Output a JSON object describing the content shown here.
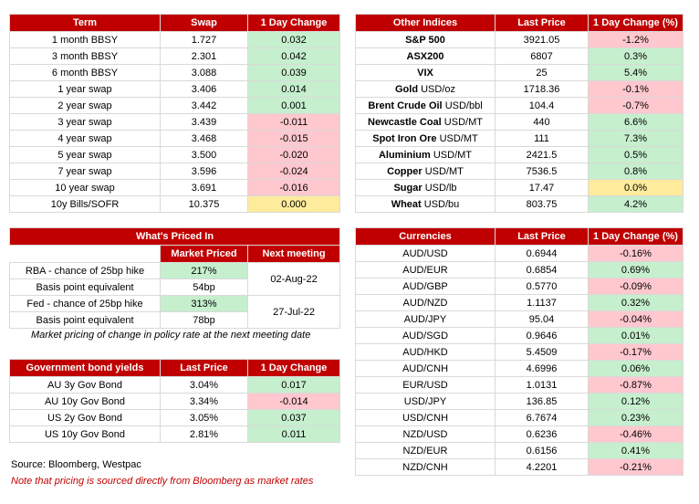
{
  "swaps": {
    "headers": [
      "Term",
      "Swap",
      "1 Day Change"
    ],
    "rows": [
      {
        "term": "1 month BBSY",
        "value": "1.727",
        "change": "0.032",
        "tone": "pos"
      },
      {
        "term": "3 month BBSY",
        "value": "2.301",
        "change": "0.042",
        "tone": "pos"
      },
      {
        "term": "6 month BBSY",
        "value": "3.088",
        "change": "0.039",
        "tone": "pos"
      },
      {
        "term": "1 year swap",
        "value": "3.406",
        "change": "0.014",
        "tone": "pos"
      },
      {
        "term": "2 year swap",
        "value": "3.442",
        "change": "0.001",
        "tone": "pos"
      },
      {
        "term": "3 year swap",
        "value": "3.439",
        "change": "-0.011",
        "tone": "neg"
      },
      {
        "term": "4 year swap",
        "value": "3.468",
        "change": "-0.015",
        "tone": "neg"
      },
      {
        "term": "5 year swap",
        "value": "3.500",
        "change": "-0.020",
        "tone": "neg"
      },
      {
        "term": "7 year swap",
        "value": "3.596",
        "change": "-0.024",
        "tone": "neg"
      },
      {
        "term": "10 year swap",
        "value": "3.691",
        "change": "-0.016",
        "tone": "neg"
      },
      {
        "term": "10y Bills/SOFR",
        "value": "10.375",
        "change": "0.000",
        "tone": "zero"
      }
    ]
  },
  "indices": {
    "headers": [
      "Other Indices",
      "Last Price",
      "1 Day Change (%)"
    ],
    "rows": [
      {
        "name": "S&P 500",
        "unit": "",
        "price": "3921.05",
        "change": "-1.2%",
        "tone": "neg"
      },
      {
        "name": "ASX200",
        "unit": "",
        "price": "6807",
        "change": "0.3%",
        "tone": "pos"
      },
      {
        "name": "VIX",
        "unit": "",
        "price": "25",
        "change": "5.4%",
        "tone": "pos"
      },
      {
        "name": "Gold",
        "unit": "USD/oz",
        "price": "1718.36",
        "change": "-0.1%",
        "tone": "neg"
      },
      {
        "name": "Brent Crude Oil",
        "unit": "USD/bbl",
        "price": "104.4",
        "change": "-0.7%",
        "tone": "neg"
      },
      {
        "name": "Newcastle Coal",
        "unit": "USD/MT",
        "price": "440",
        "change": "6.6%",
        "tone": "pos"
      },
      {
        "name": "Spot Iron Ore",
        "unit": "USD/MT",
        "price": "111",
        "change": "7.3%",
        "tone": "pos"
      },
      {
        "name": "Aluminium",
        "unit": "USD/MT",
        "price": "2421.5",
        "change": "0.5%",
        "tone": "pos"
      },
      {
        "name": "Copper",
        "unit": "USD/MT",
        "price": "7536.5",
        "change": "0.8%",
        "tone": "pos"
      },
      {
        "name": "Sugar",
        "unit": "USD/lb",
        "price": "17.47",
        "change": "0.0%",
        "tone": "zero"
      },
      {
        "name": "Wheat",
        "unit": "USD/bu",
        "price": "803.75",
        "change": "4.2%",
        "tone": "pos"
      }
    ]
  },
  "priced": {
    "title": "What's Priced In",
    "col1": "Market Priced",
    "col2": "Next meeting",
    "rows": [
      {
        "label": "RBA - chance of 25bp hike",
        "value": "217%",
        "tone": "pos"
      },
      {
        "label": "Basis point equivalent",
        "value": "54bp",
        "tone": ""
      },
      {
        "label": "Fed - chance of 25bp hike",
        "value": "313%",
        "tone": "pos"
      },
      {
        "label": "Basis point equivalent",
        "value": "78bp",
        "tone": ""
      }
    ],
    "meetings": [
      "02-Aug-22",
      "27-Jul-22"
    ],
    "note": "Market pricing of change in policy rate at the next meeting date"
  },
  "bonds": {
    "headers": [
      "Government bond yields",
      "Last Price",
      "1 Day Change"
    ],
    "rows": [
      {
        "name": "AU 3y Gov Bond",
        "price": "3.04%",
        "change": "0.017",
        "tone": "pos"
      },
      {
        "name": "AU 10y Gov Bond",
        "price": "3.34%",
        "change": "-0.014",
        "tone": "neg"
      },
      {
        "name": "US 2y Gov Bond",
        "price": "3.05%",
        "change": "0.037",
        "tone": "pos"
      },
      {
        "name": "US 10y Gov Bond",
        "price": "2.81%",
        "change": "0.011",
        "tone": "pos"
      }
    ]
  },
  "currencies": {
    "headers": [
      "Currencies",
      "Last Price",
      "1 Day Change (%)"
    ],
    "rows": [
      {
        "pair": "AUD/USD",
        "price": "0.6944",
        "change": "-0.16%",
        "tone": "neg"
      },
      {
        "pair": "AUD/EUR",
        "price": "0.6854",
        "change": "0.69%",
        "tone": "pos"
      },
      {
        "pair": "AUD/GBP",
        "price": "0.5770",
        "change": "-0.09%",
        "tone": "neg"
      },
      {
        "pair": "AUD/NZD",
        "price": "1.1137",
        "change": "0.32%",
        "tone": "pos"
      },
      {
        "pair": "AUD/JPY",
        "price": "95.04",
        "change": "-0.04%",
        "tone": "neg"
      },
      {
        "pair": "AUD/SGD",
        "price": "0.9646",
        "change": "0.01%",
        "tone": "pos"
      },
      {
        "pair": "AUD/HKD",
        "price": "5.4509",
        "change": "-0.17%",
        "tone": "neg"
      },
      {
        "pair": "AUD/CNH",
        "price": "4.6996",
        "change": "0.06%",
        "tone": "pos"
      },
      {
        "pair": "EUR/USD",
        "price": "1.0131",
        "change": "-0.87%",
        "tone": "neg"
      },
      {
        "pair": "USD/JPY",
        "price": "136.85",
        "change": "0.12%",
        "tone": "pos"
      },
      {
        "pair": "USD/CNH",
        "price": "6.7674",
        "change": "0.23%",
        "tone": "pos"
      },
      {
        "pair": "NZD/USD",
        "price": "0.6236",
        "change": "-0.46%",
        "tone": "neg"
      },
      {
        "pair": "NZD/EUR",
        "price": "0.6156",
        "change": "0.41%",
        "tone": "pos"
      },
      {
        "pair": "NZD/CNH",
        "price": "4.2201",
        "change": "-0.21%",
        "tone": "neg"
      }
    ]
  },
  "footer": {
    "source": "Source: Bloomberg, Westpac",
    "disclaimer": "Note that pricing is sourced directly from Bloomberg as market rates"
  }
}
